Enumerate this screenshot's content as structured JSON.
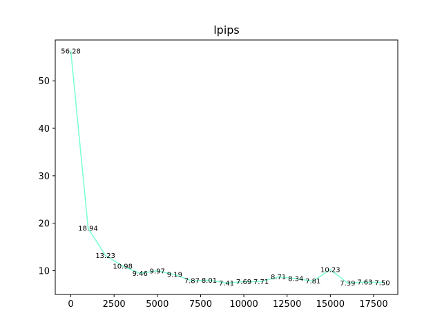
{
  "chart_data": {
    "type": "line",
    "title": "lpips",
    "xlabel": "",
    "ylabel": "",
    "xlim": [
      -900,
      18900
    ],
    "ylim": [
      5.0,
      58.6
    ],
    "x_ticks": [
      0,
      2500,
      5000,
      7500,
      10000,
      12500,
      15000,
      17500
    ],
    "x_tick_labels": [
      "0",
      "2500",
      "5000",
      "7500",
      "10000",
      "12500",
      "15000",
      "17500"
    ],
    "y_ticks": [
      10,
      20,
      30,
      40,
      50
    ],
    "y_tick_labels": [
      "10",
      "20",
      "30",
      "40",
      "50"
    ],
    "grid": false,
    "line_color": "#7fffd4",
    "series": [
      {
        "x": [
          0,
          1000,
          2000,
          3000,
          4000,
          5000,
          6000,
          7000,
          8000,
          9000,
          10000,
          11000,
          12000,
          13000,
          14000,
          15000,
          16000,
          17000,
          18000
        ],
        "y": [
          56.28,
          18.94,
          13.23,
          10.98,
          9.46,
          9.97,
          9.19,
          7.87,
          8.01,
          7.41,
          7.69,
          7.71,
          8.71,
          8.34,
          7.81,
          10.23,
          7.39,
          7.63,
          7.5
        ],
        "labels": [
          "56.28",
          "18.94",
          "13.23",
          "10.98",
          "9.46",
          "9.97",
          "9.19",
          "7.87",
          "8.01",
          "7.41",
          "7.69",
          "7.71",
          "8.71",
          "8.34",
          "7.81",
          "10.23",
          "7.39",
          "7.63",
          "7.50"
        ]
      }
    ]
  }
}
